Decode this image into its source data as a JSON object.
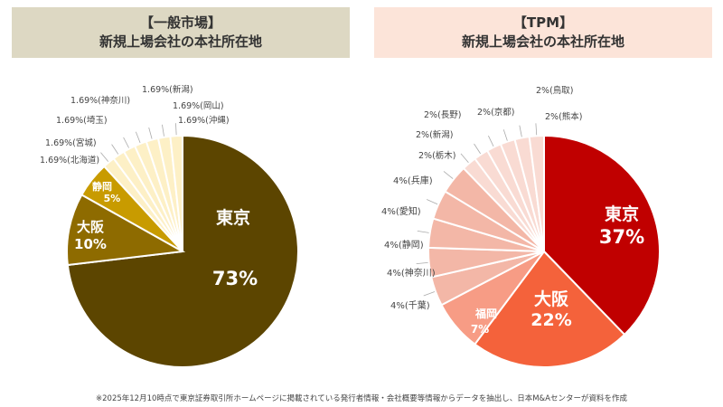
{
  "chart_data": [
    {
      "type": "pie",
      "title": "【一般市場】",
      "subtitle": "新規上場会社の本社所在地",
      "categories": [
        "東京",
        "大阪",
        "静岡",
        "北海道",
        "宮城",
        "埼玉",
        "神奈川",
        "新潟",
        "岡山",
        "沖縄"
      ],
      "values": [
        73,
        10,
        5,
        1.69,
        1.69,
        1.69,
        1.69,
        1.69,
        1.69,
        1.69
      ],
      "labels": [
        "73%",
        "10%",
        "5%",
        "1.69%(北海道)",
        "1.69%(宮城)",
        "1.69%(埼玉)",
        "1.69%(神奈川)",
        "1.69%(新潟)",
        "1.69%(岡山)",
        "1.69%(沖縄)"
      ],
      "colors": [
        "#5c4500",
        "#8e6b00",
        "#c89b00",
        "#fdf0c6",
        "#fdf0c6",
        "#fdf0c6",
        "#fdf0c6",
        "#fdf0c6",
        "#fdf0c6",
        "#fdf0c6"
      ]
    },
    {
      "type": "pie",
      "title": "【TPM】",
      "subtitle": "新規上場会社の本社所在地",
      "categories": [
        "東京",
        "大阪",
        "福岡",
        "千葉",
        "神奈川",
        "静岡",
        "愛知",
        "兵庫",
        "栃木",
        "新潟",
        "長野",
        "京都",
        "鳥取",
        "熊本"
      ],
      "values": [
        37,
        22,
        7,
        4,
        4,
        4,
        4,
        4,
        2,
        2,
        2,
        2,
        2,
        2
      ],
      "labels": [
        "37%",
        "22%",
        "7%",
        "4%(千葉)",
        "4%(神奈川)",
        "4%(静岡)",
        "4%(愛知)",
        "4%(兵庫)",
        "2%(栃木)",
        "2%(新潟)",
        "2%(長野)",
        "2%(京都)",
        "2%(鳥取)",
        "2%(熊本)"
      ],
      "colors": [
        "#c00000",
        "#f4623b",
        "#f79c85",
        "#f3b7a7",
        "#f3b7a7",
        "#f3b7a7",
        "#f3b7a7",
        "#f3b7a7",
        "#f9dbd3",
        "#f9dbd3",
        "#f9dbd3",
        "#f9dbd3",
        "#f9dbd3",
        "#f9dbd3"
      ]
    }
  ],
  "footnote": "※2025年12月10時点で東京証券取引所ホームページに掲載されている発行者情報・会社概要等情報からデータを抽出し、日本M&Aセンターが資料を作成"
}
